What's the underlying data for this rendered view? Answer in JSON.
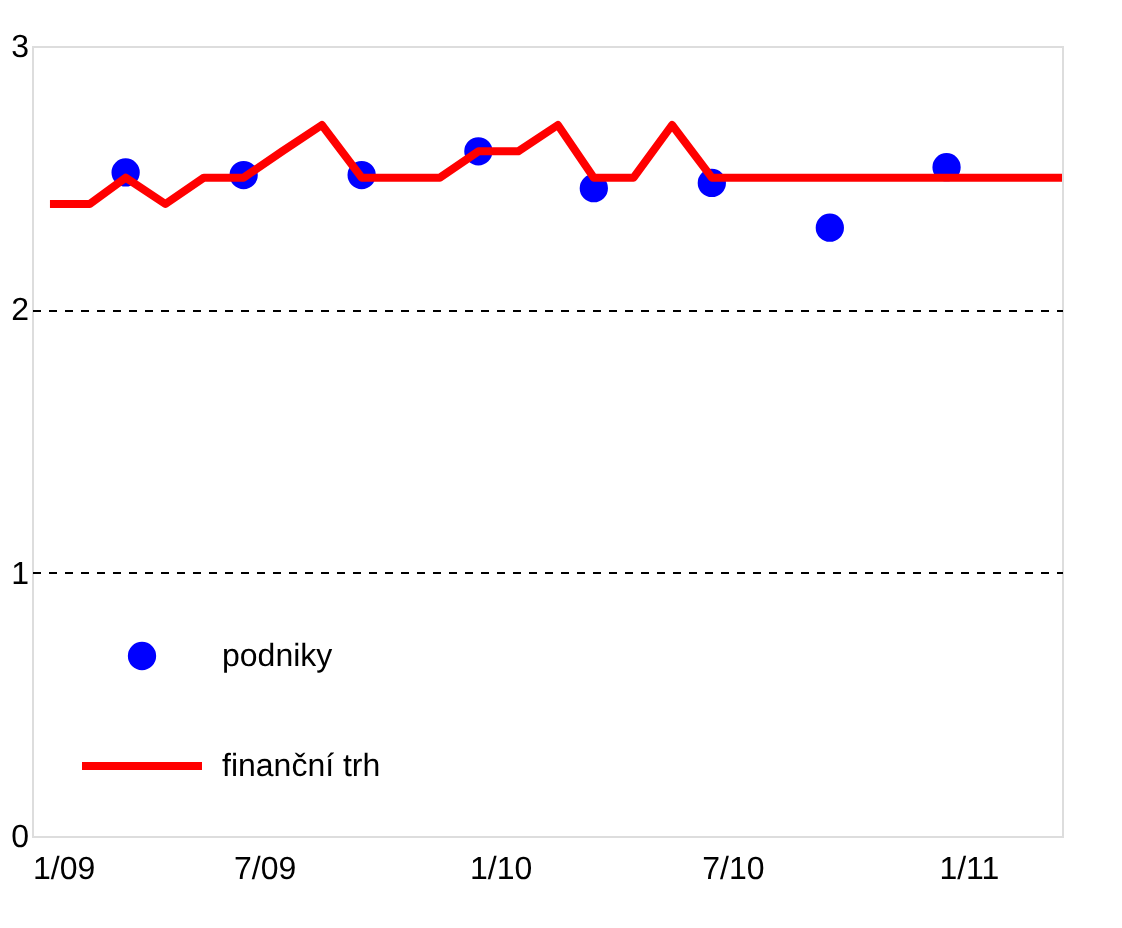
{
  "chart_data": {
    "type": "line",
    "xlim": [
      "2009-01-01",
      "2011-03-15"
    ],
    "ylim": [
      0,
      3
    ],
    "yticks": [
      0,
      1,
      2,
      3
    ],
    "xticks": [
      {
        "value": "2009-01-01",
        "label": "1/09"
      },
      {
        "value": "2009-07-01",
        "label": "7/09"
      },
      {
        "value": "2010-01-01",
        "label": "1/10"
      },
      {
        "value": "2010-07-01",
        "label": "7/10"
      },
      {
        "value": "2011-01-01",
        "label": "1/11"
      }
    ],
    "grid": "y",
    "legend": "bottom left",
    "series": [
      {
        "name": "podniky",
        "type": "scatter",
        "marker": "circle",
        "color": "#0000ff",
        "x": [
          "2009-03-15",
          "2009-06-15",
          "2009-09-15",
          "2009-12-15",
          "2010-03-15",
          "2010-06-15",
          "2010-09-15",
          "2010-12-15"
        ],
        "values": [
          2.52,
          2.51,
          2.51,
          2.6,
          2.46,
          2.48,
          2.31,
          2.54
        ]
      },
      {
        "name": "finanční trh",
        "marker": "none",
        "line_style": "solid",
        "color": "#ff0000",
        "x": [
          "2009-01-15",
          "2009-02-15",
          "2009-03-15",
          "2009-04-15",
          "2009-05-15",
          "2009-06-15",
          "2009-07-15",
          "2009-08-15",
          "2009-09-15",
          "2009-10-15",
          "2009-11-15",
          "2009-12-15",
          "2010-01-15",
          "2010-02-15",
          "2010-03-15",
          "2010-04-15",
          "2010-05-15",
          "2010-06-15",
          "2011-03-15"
        ],
        "values": [
          2.4,
          2.4,
          2.5,
          2.4,
          2.5,
          2.5,
          2.6,
          2.7,
          2.5,
          2.5,
          2.5,
          2.6,
          2.6,
          2.7,
          2.5,
          2.5,
          2.7,
          2.5,
          2.5
        ]
      }
    ]
  }
}
